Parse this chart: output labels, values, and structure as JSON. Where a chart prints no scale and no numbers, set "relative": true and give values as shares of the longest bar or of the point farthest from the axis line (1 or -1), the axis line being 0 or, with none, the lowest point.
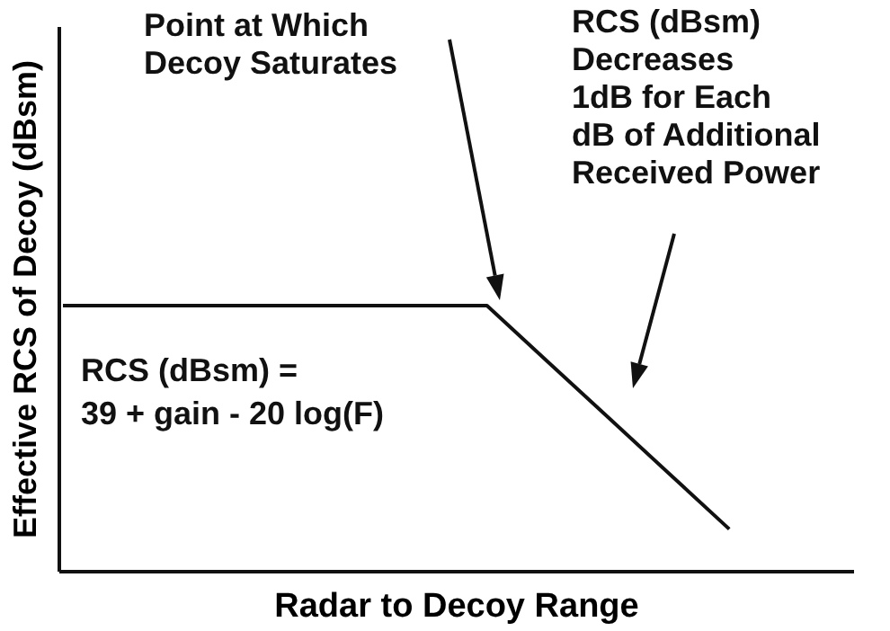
{
  "chart_data": {
    "type": "line",
    "relative": true,
    "xlabel": "Radar to Decoy Range",
    "ylabel": "Effective RCS of Decoy (dBsm)",
    "categories": [
      null,
      null,
      null,
      null,
      null,
      null,
      null,
      null,
      null,
      null,
      null,
      null,
      null,
      null
    ],
    "values": [
      1,
      1,
      1,
      1,
      1,
      1,
      1,
      1,
      0.79,
      0.58,
      0.37,
      0.16,
      null,
      null
    ],
    "color": "#111111",
    "annotations": [
      "Point at Which\nDecoy Saturates",
      "RCS (dBsm)\nDecreases\n1dB for Each\ndB of Additional\nReceived Power",
      "RCS (dBsm) =\n39 + gain - 20 log(F)"
    ]
  }
}
